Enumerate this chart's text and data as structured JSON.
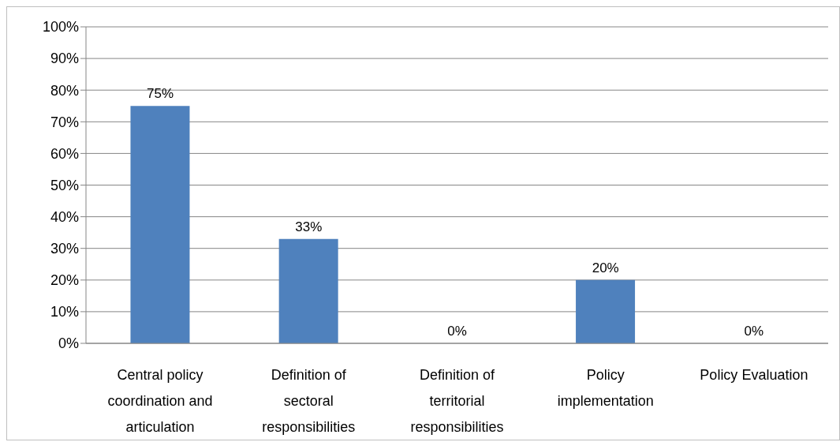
{
  "chart_data": {
    "type": "bar",
    "categories": [
      "Central policy coordination and articulation",
      "Definition of sectoral responsibilities",
      "Definition of territorial responsibilities",
      "Policy implementation",
      "Policy Evaluation"
    ],
    "values": [
      75,
      33,
      0,
      20,
      0
    ],
    "value_labels": [
      "75%",
      "33%",
      "0%",
      "20%",
      "0%"
    ],
    "color": "#4f81bd",
    "ylim": [
      0,
      100
    ],
    "yticks": [
      {
        "value": 0,
        "label": "0%"
      },
      {
        "value": 10,
        "label": "10%"
      },
      {
        "value": 20,
        "label": "20%"
      },
      {
        "value": 30,
        "label": "30%"
      },
      {
        "value": 40,
        "label": "40%"
      },
      {
        "value": 50,
        "label": "50%"
      },
      {
        "value": 60,
        "label": "60%"
      },
      {
        "value": 70,
        "label": "70%"
      },
      {
        "value": 80,
        "label": "80%"
      },
      {
        "value": 90,
        "label": "90%"
      },
      {
        "value": 100,
        "label": "100%"
      }
    ],
    "grid": "y"
  }
}
